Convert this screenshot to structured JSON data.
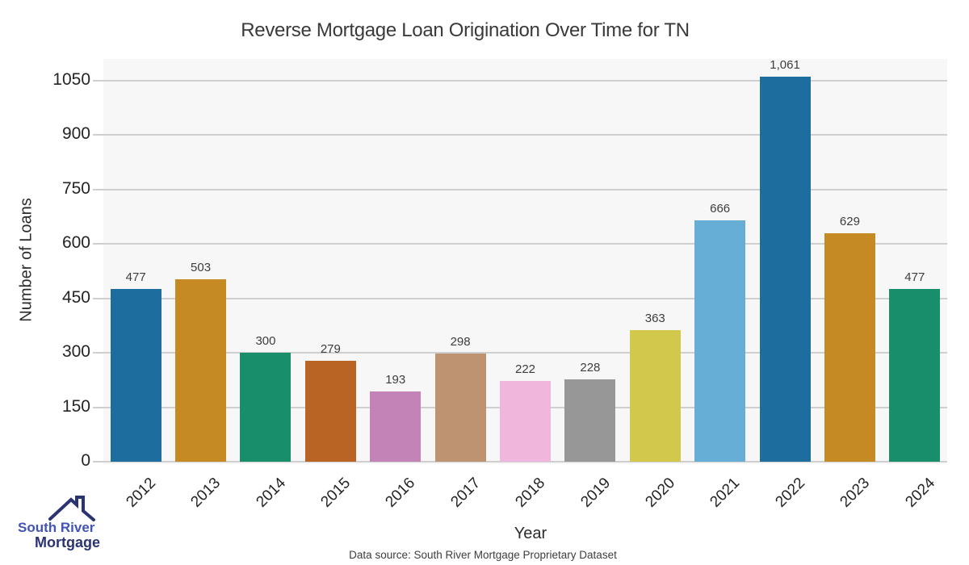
{
  "title": "Reverse Mortgage Loan Origination Over Time for TN",
  "footer": "Data source: South River Mortgage Proprietary Dataset",
  "logo": {
    "line1": "South River",
    "line2": "Mortgage",
    "primary_color": "#4254b5",
    "dark_color": "#2b3472"
  },
  "colors": {
    "panel_background": "#f7f7f7",
    "gridline": "#cfcfcf",
    "tick_text": "#242424",
    "title_text": "#3a3a3a",
    "value_label_text": "#3d3d3d"
  },
  "chart_data": {
    "type": "bar",
    "title": "Reverse Mortgage Loan Origination Over Time for TN",
    "xlabel": "Year",
    "ylabel": "Number of Loans",
    "categories": [
      "2012",
      "2013",
      "2014",
      "2015",
      "2016",
      "2017",
      "2018",
      "2019",
      "2020",
      "2021",
      "2022",
      "2023",
      "2024"
    ],
    "values": [
      477,
      503,
      300,
      279,
      193,
      298,
      222,
      228,
      363,
      666,
      1061,
      629,
      477
    ],
    "value_labels": [
      "477",
      "503",
      "300",
      "279",
      "193",
      "298",
      "222",
      "228",
      "363",
      "666",
      "1,061",
      "629",
      "477"
    ],
    "bar_colors": [
      "#1d6e9f",
      "#c68a25",
      "#188e6a",
      "#b96325",
      "#c383b7",
      "#bd9371",
      "#f0b6db",
      "#979797",
      "#d2c84b",
      "#66aed5",
      "#1d6e9f",
      "#c68a25",
      "#188e6a"
    ],
    "yticks": [
      0,
      150,
      300,
      450,
      600,
      750,
      900,
      1050
    ],
    "ylim": [
      0,
      1110
    ],
    "grid": true,
    "legend": false,
    "x_tick_rotation_deg": 45
  }
}
